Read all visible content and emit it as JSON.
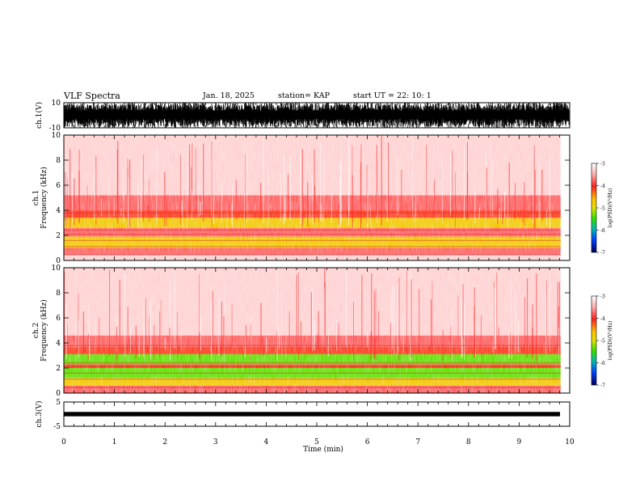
{
  "header": {
    "title": "VLF Spectra",
    "date": "Jan. 18, 2025",
    "station": "station= KAP",
    "start": "start  UT =   22: 10: 1"
  },
  "colors": {
    "scale": [
      "#ffffff",
      "#ffb0b0",
      "#ff2020",
      "#ffc000",
      "#e0e000",
      "#30e000",
      "#00b8b8",
      "#0040ff",
      "#000060"
    ],
    "trace": "#000000"
  },
  "chart_data": [
    {
      "type": "line",
      "name": "ch1-waveform",
      "ylabel": "ch.1(V)",
      "ylim": [
        -10,
        10
      ],
      "yticks": [
        10,
        -10
      ],
      "xlim": [
        0,
        10
      ],
      "x": [
        0,
        10
      ],
      "envelope_y": [
        -10,
        10
      ]
    },
    {
      "type": "heatmap",
      "name": "ch1-spectrogram",
      "ylabel_top": "ch.1",
      "ylabel": "Frequency  (kHz)",
      "xlim": [
        0,
        10
      ],
      "ylim": [
        0,
        10
      ],
      "yticks": [
        0,
        2,
        4,
        6,
        8,
        10
      ],
      "data_end_min": 9.82,
      "bands": [
        {
          "from": 0,
          "to": 0.45,
          "level": 1
        },
        {
          "from": 0.45,
          "to": 1.0,
          "level": 2
        },
        {
          "from": 1.0,
          "to": 1.9,
          "level": 4
        },
        {
          "from": 1.9,
          "to": 2.6,
          "level": 2
        },
        {
          "from": 2.6,
          "to": 3.4,
          "level": 4
        },
        {
          "from": 3.4,
          "to": 4.0,
          "level": 3
        },
        {
          "from": 4.0,
          "to": 5.2,
          "level": 2
        },
        {
          "from": 5.2,
          "to": 10,
          "level": 1
        }
      ],
      "colorbar": {
        "label": "log(PSD)(V²/Hz)",
        "ticks": [
          -3,
          -4,
          -5,
          -6,
          -7
        ]
      }
    },
    {
      "type": "heatmap",
      "name": "ch2-spectrogram",
      "ylabel_top": "ch.2",
      "ylabel": "Frequency  (kHz)",
      "xlim": [
        0,
        10
      ],
      "ylim": [
        0,
        10
      ],
      "yticks": [
        0,
        2,
        4,
        6,
        8,
        10
      ],
      "data_end_min": 9.82,
      "bands": [
        {
          "from": 0,
          "to": 0.6,
          "level": 2
        },
        {
          "from": 0.6,
          "to": 1.2,
          "level": 4
        },
        {
          "from": 1.2,
          "to": 2.0,
          "level": 5
        },
        {
          "from": 2.0,
          "to": 2.3,
          "level": 3
        },
        {
          "from": 2.3,
          "to": 3.1,
          "level": 5
        },
        {
          "from": 3.1,
          "to": 3.7,
          "level": 3
        },
        {
          "from": 3.7,
          "to": 4.6,
          "level": 2
        },
        {
          "from": 4.6,
          "to": 10,
          "level": 1
        }
      ],
      "colorbar": {
        "label": "log(PSD)(V²/Hz)",
        "ticks": [
          -3,
          -4,
          -5,
          -6,
          -7
        ]
      }
    },
    {
      "type": "line",
      "name": "ch3-waveform",
      "ylabel": "ch.3(V)",
      "ylim": [
        -5,
        5
      ],
      "yticks": [
        5,
        -5
      ],
      "xlim": [
        0,
        10
      ],
      "envelope_y": [
        -0.9,
        0.9
      ]
    }
  ],
  "xaxis": {
    "label": "Time  (min)",
    "ticks": [
      0,
      1,
      2,
      3,
      4,
      5,
      6,
      7,
      8,
      9,
      10
    ]
  }
}
